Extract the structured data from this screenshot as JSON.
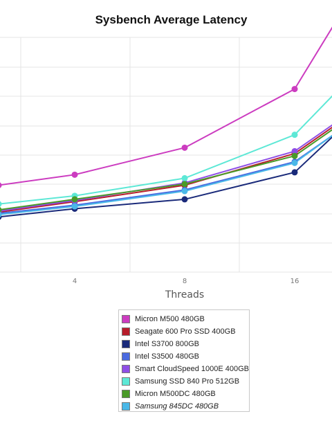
{
  "chart_data": {
    "type": "line",
    "title": "Sysbench Average Latency",
    "xlabel": "Threads",
    "ylabel": "",
    "x": [
      2,
      4,
      8,
      16
    ],
    "x_ticks": [
      "4",
      "8",
      "16"
    ],
    "xlim": [
      1.75,
      21
    ],
    "ylim": [
      0,
      10
    ],
    "grid": true,
    "legend_position": "bottom",
    "series": [
      {
        "name": "Micron M500 480GB",
        "color": "#cc3cc0",
        "values": [
          3.7,
          4.15,
          5.3,
          7.8
        ],
        "tail": 10.5
      },
      {
        "name": "Seagate 600 Pro SSD 400GB",
        "color": "#b71c2a",
        "values": [
          2.55,
          3.0,
          3.7,
          5.05
        ],
        "tail": 6.2
      },
      {
        "name": "Intel S3700 800GB",
        "color": "#1a2a7a",
        "values": [
          2.35,
          2.7,
          3.1,
          4.25
        ],
        "tail": 5.8
      },
      {
        "name": "Intel S3500 480GB",
        "color": "#4a6ae0",
        "values": [
          2.5,
          2.85,
          3.5,
          4.7
        ],
        "tail": 5.85
      },
      {
        "name": "Smart CloudSpeed 1000E 400GB",
        "color": "#8f4ee6",
        "values": [
          2.6,
          3.05,
          3.8,
          5.15
        ],
        "tail": 6.3
      },
      {
        "name": "Samsung SSD 840 Pro 512GB",
        "color": "#5de8d6",
        "values": [
          2.9,
          3.25,
          4.0,
          5.85
        ],
        "tail": 7.55
      },
      {
        "name": "Micron M500DC 480GB",
        "color": "#4a9a28",
        "values": [
          2.65,
          3.1,
          3.75,
          4.95
        ],
        "tail": 6.1
      },
      {
        "name": "Samsung 845DC 480GB",
        "color": "#4ab8e8",
        "values": [
          2.45,
          2.8,
          3.45,
          4.65
        ],
        "tail": 5.85
      }
    ]
  }
}
